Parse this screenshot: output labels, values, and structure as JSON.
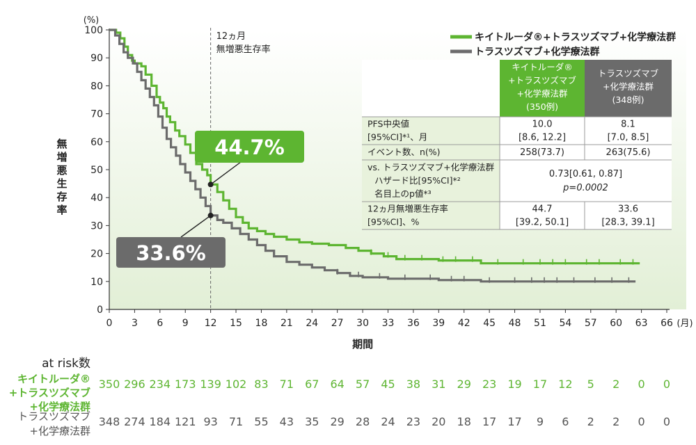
{
  "chart_data": {
    "type": "line",
    "ylabel": "無増悪生存率",
    "yunit": "(%)",
    "xlabel": "期間",
    "xunit": "(月)",
    "xlim": [
      0,
      66
    ],
    "ylim": [
      0,
      100
    ],
    "xticks": [
      0,
      3,
      6,
      9,
      12,
      15,
      18,
      21,
      24,
      27,
      30,
      33,
      36,
      39,
      42,
      45,
      48,
      51,
      54,
      57,
      60,
      63,
      66
    ],
    "yticks": [
      0,
      10,
      20,
      30,
      40,
      50,
      60,
      70,
      80,
      90,
      100
    ],
    "grid": false,
    "reference_line": {
      "x": 12,
      "label_line1": "12ヵ月",
      "label_line2": "無増悪生存率"
    },
    "series": [
      {
        "name": "キイトルーダ®+トラスツズマブ+化学療法群",
        "color": "#5db531",
        "points": [
          [
            0,
            100
          ],
          [
            0.8,
            99
          ],
          [
            1.3,
            97
          ],
          [
            1.8,
            94
          ],
          [
            2.2,
            91
          ],
          [
            2.7,
            89
          ],
          [
            3,
            88
          ],
          [
            3.8,
            87
          ],
          [
            4.3,
            84
          ],
          [
            5,
            80
          ],
          [
            5.6,
            76
          ],
          [
            6,
            74
          ],
          [
            6.4,
            72
          ],
          [
            6.8,
            69
          ],
          [
            7.2,
            67
          ],
          [
            7.8,
            64
          ],
          [
            8.3,
            62
          ],
          [
            9,
            59
          ],
          [
            9.6,
            56
          ],
          [
            10.3,
            52
          ],
          [
            11,
            50
          ],
          [
            11.6,
            48
          ],
          [
            12,
            44.7
          ],
          [
            12.8,
            42
          ],
          [
            13.5,
            39
          ],
          [
            14.2,
            36
          ],
          [
            15,
            33
          ],
          [
            15.8,
            31
          ],
          [
            16.5,
            29
          ],
          [
            17.5,
            28
          ],
          [
            18.5,
            27
          ],
          [
            19.5,
            26
          ],
          [
            21,
            25
          ],
          [
            22.5,
            24
          ],
          [
            24,
            23.5
          ],
          [
            26,
            23
          ],
          [
            28,
            22
          ],
          [
            29.5,
            21
          ],
          [
            31,
            20
          ],
          [
            32.5,
            19
          ],
          [
            34,
            18
          ],
          [
            36,
            18
          ],
          [
            39,
            17.5
          ],
          [
            42,
            17.5
          ],
          [
            44,
            16.5
          ],
          [
            48,
            16.5
          ],
          [
            52,
            16.5
          ],
          [
            56,
            16.5
          ],
          [
            62.8,
            16.5
          ]
        ],
        "end_label": "44.7%"
      },
      {
        "name": "トラスツズマブ+化学療法群",
        "color": "#6b6b6b",
        "points": [
          [
            0,
            100
          ],
          [
            0.7,
            98
          ],
          [
            1.2,
            95
          ],
          [
            1.7,
            92
          ],
          [
            2.2,
            90
          ],
          [
            2.8,
            88
          ],
          [
            3.3,
            85
          ],
          [
            3.8,
            82
          ],
          [
            4.3,
            79
          ],
          [
            4.8,
            76
          ],
          [
            5.3,
            73
          ],
          [
            5.8,
            69
          ],
          [
            6.3,
            65
          ],
          [
            6.8,
            61
          ],
          [
            7.3,
            58
          ],
          [
            7.9,
            55
          ],
          [
            8.4,
            52
          ],
          [
            9,
            49
          ],
          [
            9.6,
            46
          ],
          [
            10.2,
            43
          ],
          [
            10.8,
            40
          ],
          [
            11.4,
            37
          ],
          [
            12,
            33.6
          ],
          [
            12.8,
            32
          ],
          [
            13.5,
            31
          ],
          [
            14.5,
            29
          ],
          [
            15.5,
            27
          ],
          [
            16.5,
            25
          ],
          [
            17.5,
            23
          ],
          [
            18.5,
            21
          ],
          [
            19.5,
            19
          ],
          [
            21,
            17
          ],
          [
            22.5,
            16
          ],
          [
            24,
            15
          ],
          [
            25.5,
            14
          ],
          [
            27,
            13
          ],
          [
            28.5,
            12
          ],
          [
            30,
            11.5
          ],
          [
            33,
            11
          ],
          [
            36,
            11
          ],
          [
            39,
            10.5
          ],
          [
            42,
            10.5
          ],
          [
            44,
            10
          ],
          [
            48,
            10
          ],
          [
            52,
            10
          ],
          [
            56,
            10
          ],
          [
            62.3,
            10
          ]
        ],
        "end_label": "33.6%"
      }
    ],
    "callouts": [
      {
        "series": 0,
        "value_text": "44.7%",
        "x": 12,
        "y": 44.7
      },
      {
        "series": 1,
        "value_text": "33.6%",
        "x": 12,
        "y": 33.6
      }
    ],
    "legend": {
      "placement": "top-right",
      "items": [
        "キイトルーダ®+トラスツズマブ+化学療法群",
        "トラスツズマブ+化学療法群"
      ]
    },
    "results_table": {
      "head_keytruda": [
        "キイトルーダ®",
        "+トラスツズマブ",
        "+化学療法群",
        "(350例)"
      ],
      "head_control": [
        "トラスツズマブ",
        "+化学療法群",
        "(348例)"
      ],
      "rows": [
        {
          "label": [
            "PFS中央値",
            "[95%CI]*¹、月"
          ],
          "keytruda": [
            "10.0",
            "[8.6, 12.2]"
          ],
          "control": [
            "8.1",
            "[7.0, 8.5]"
          ]
        },
        {
          "label": [
            "イベント数、n(%)"
          ],
          "keytruda": [
            "258(73.7)"
          ],
          "control": [
            "263(75.6)"
          ]
        },
        {
          "label": [
            "vs. トラスツズマブ+化学療法群",
            "ハザード比[95%CI]*²",
            "名目上のp値*³"
          ],
          "merged": [
            "0.73[0.61, 0.87]",
            "p=0.0002"
          ]
        },
        {
          "label": [
            "12ヵ月無増悪生存率",
            "[95%CI]、%"
          ],
          "keytruda": [
            "44.7",
            "[39.2, 50.1]"
          ],
          "control": [
            "33.6",
            "[28.3, 39.1]"
          ]
        }
      ]
    },
    "at_risk": {
      "title": "at risk数",
      "keytruda_label": [
        "キイトルーダ®",
        "+トラスツズマブ",
        "+化学療法群"
      ],
      "control_label": [
        "トラスツズマブ",
        "+化学療法群"
      ],
      "keytruda": [
        350,
        296,
        234,
        173,
        139,
        102,
        83,
        71,
        67,
        64,
        57,
        45,
        38,
        31,
        29,
        23,
        19,
        17,
        12,
        5,
        2,
        0,
        0
      ],
      "control": [
        348,
        274,
        184,
        121,
        93,
        71,
        55,
        43,
        35,
        29,
        28,
        24,
        23,
        20,
        18,
        17,
        17,
        9,
        6,
        2,
        2,
        0,
        0
      ]
    }
  }
}
